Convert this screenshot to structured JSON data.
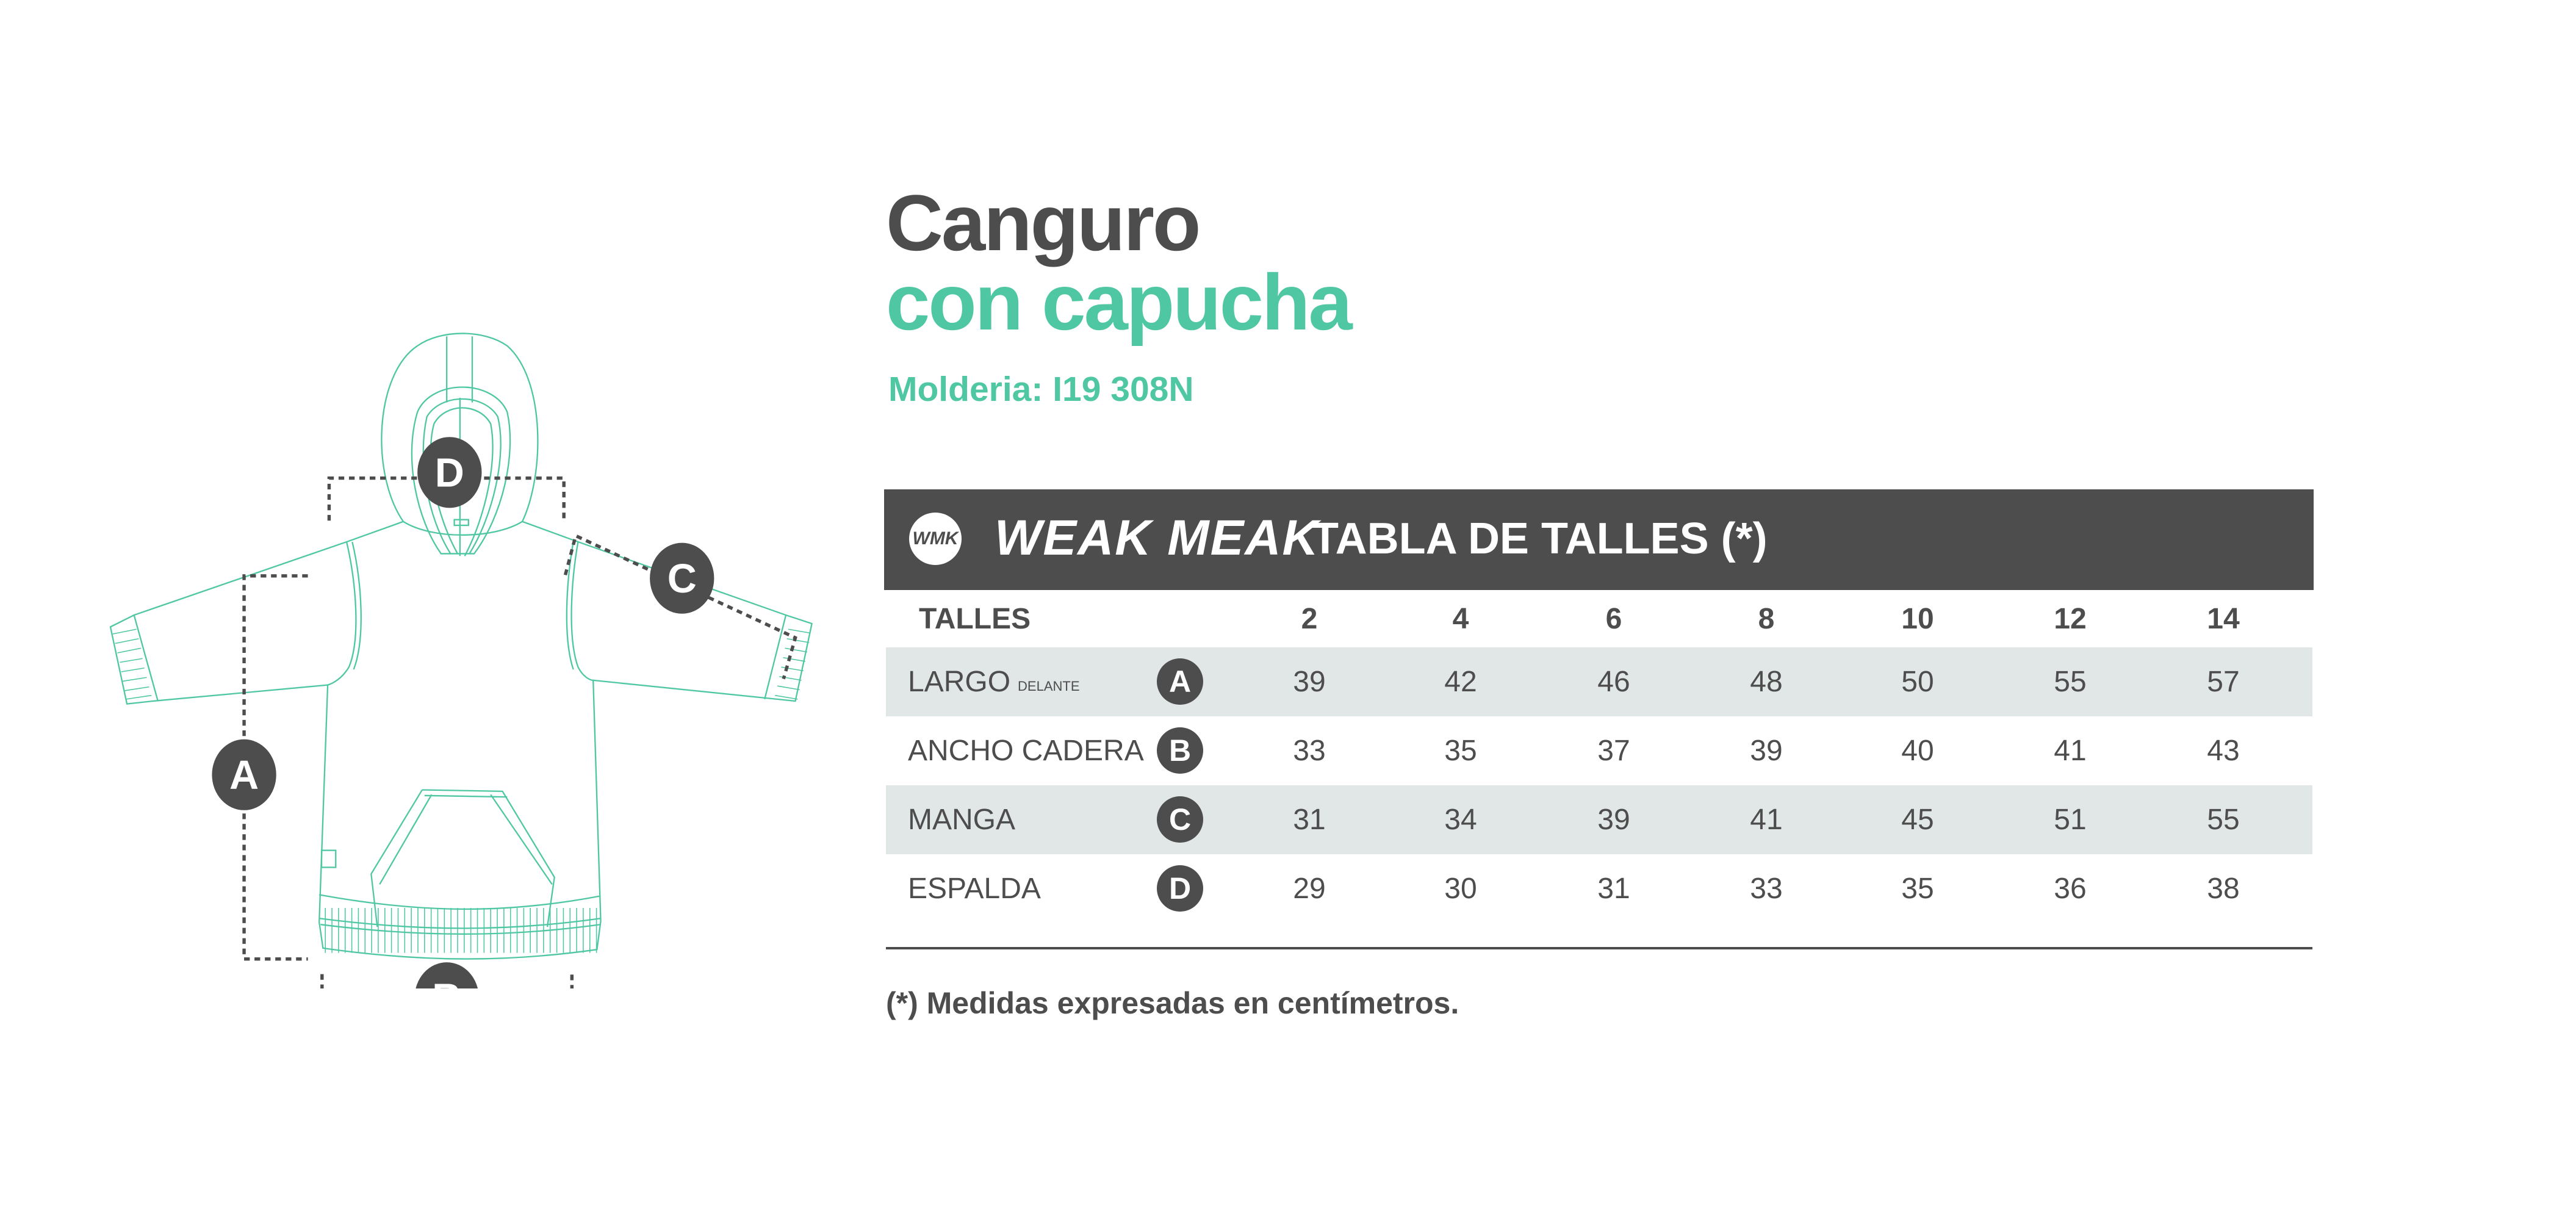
{
  "title": "Canguro",
  "subtitle": "con capucha",
  "molderia": "Molderia: I19 308N",
  "brand": {
    "logo_text": "WMK",
    "name": "WEAK MEAK"
  },
  "table": {
    "title": "TABLA DE TALLES (*)",
    "header_label": "TALLES",
    "sizes": [
      "2",
      "4",
      "6",
      "8",
      "10",
      "12",
      "14"
    ],
    "rows": [
      {
        "label": "LARGO",
        "sublabel": "DELANTE",
        "badge": "A",
        "values": [
          "39",
          "42",
          "46",
          "48",
          "50",
          "55",
          "57"
        ]
      },
      {
        "label": "ANCHO CADERA",
        "sublabel": "",
        "badge": "B",
        "values": [
          "33",
          "35",
          "37",
          "39",
          "40",
          "41",
          "43"
        ]
      },
      {
        "label": "MANGA",
        "sublabel": "",
        "badge": "C",
        "values": [
          "31",
          "34",
          "39",
          "41",
          "45",
          "51",
          "55"
        ]
      },
      {
        "label": "ESPALDA",
        "sublabel": "",
        "badge": "D",
        "values": [
          "29",
          "30",
          "31",
          "33",
          "35",
          "36",
          "38"
        ]
      }
    ]
  },
  "footnote": "(*) Medidas expresadas en centímetros.",
  "diagram": {
    "markers": [
      "A",
      "B",
      "C",
      "D"
    ]
  },
  "colors": {
    "accent": "#4fc7a3",
    "dark": "#4d4d4d",
    "row_shade": "#e1e7e6"
  }
}
